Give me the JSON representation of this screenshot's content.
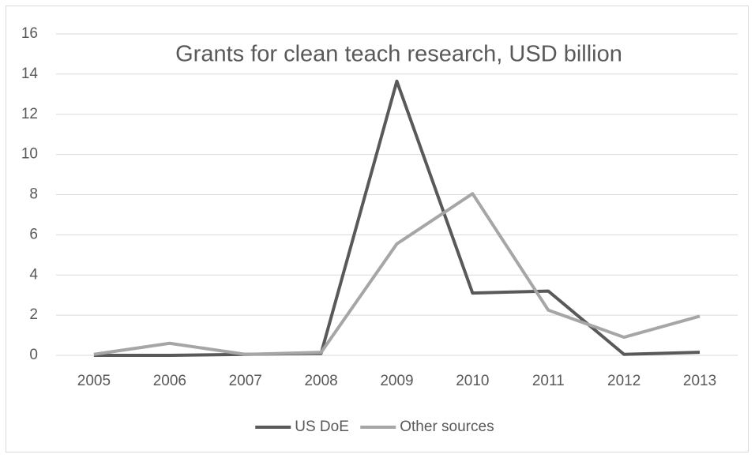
{
  "chart_data": {
    "type": "line",
    "title": "Grants for clean teach research, USD billion",
    "categories": [
      "2005",
      "2006",
      "2007",
      "2008",
      "2009",
      "2010",
      "2011",
      "2012",
      "2013"
    ],
    "series": [
      {
        "name": "US DoE",
        "color": "#595959",
        "values": [
          0,
          0,
          0.05,
          0.1,
          13.65,
          3.1,
          3.2,
          0.05,
          0.15
        ]
      },
      {
        "name": "Other sources",
        "color": "#a6a6a6",
        "values": [
          0.05,
          0.6,
          0.05,
          0.15,
          5.55,
          8.05,
          2.25,
          0.9,
          1.95
        ]
      }
    ],
    "ylim": [
      0,
      16
    ],
    "yticks": [
      0,
      2,
      4,
      6,
      8,
      10,
      12,
      14,
      16
    ],
    "grid": true,
    "legend": "bottom"
  }
}
